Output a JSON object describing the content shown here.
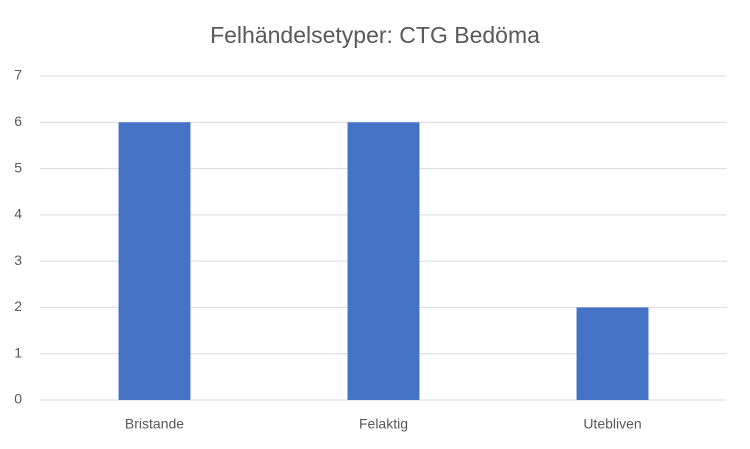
{
  "chart_data": {
    "type": "bar",
    "title": "Felhändelsetyper: CTG Bedöma",
    "categories": [
      "Bristande",
      "Felaktig",
      "Utebliven"
    ],
    "values": [
      6,
      6,
      2
    ],
    "color": "#4472c4",
    "ylim": [
      0,
      7
    ],
    "yticks": [
      0,
      1,
      2,
      3,
      4,
      5,
      6,
      7
    ],
    "grid": true
  }
}
